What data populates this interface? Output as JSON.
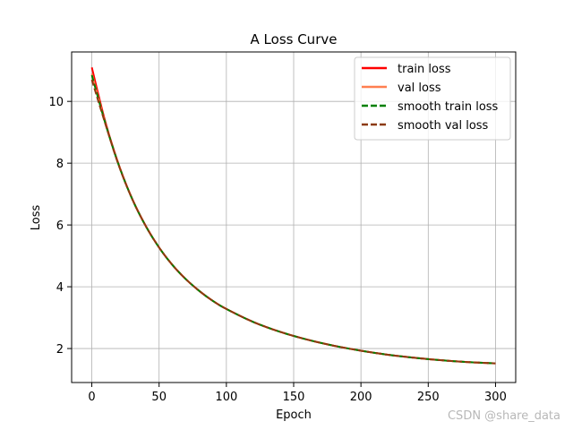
{
  "chart_data": {
    "type": "line",
    "title": "A Loss Curve",
    "xlabel": "Epoch",
    "ylabel": "Loss",
    "xlim": [
      -15,
      315
    ],
    "ylim": [
      0.9,
      11.6
    ],
    "xticks": [
      0,
      50,
      100,
      150,
      200,
      250,
      300
    ],
    "yticks": [
      2,
      4,
      6,
      8,
      10
    ],
    "grid": true,
    "legend_position": "top-right",
    "series": [
      {
        "name": "train loss",
        "color": "#ff0000",
        "style": "solid",
        "x": [
          0,
          10,
          20,
          30,
          40,
          50,
          60,
          70,
          80,
          90,
          100,
          120,
          140,
          160,
          180,
          200,
          220,
          240,
          260,
          280,
          300
        ],
        "values": [
          11.1,
          9.35,
          7.96,
          6.85,
          5.98,
          5.27,
          4.7,
          4.24,
          3.86,
          3.54,
          3.28,
          2.86,
          2.54,
          2.29,
          2.09,
          1.93,
          1.8,
          1.7,
          1.62,
          1.56,
          1.52
        ]
      },
      {
        "name": "val loss",
        "color": "#ff7f50",
        "style": "solid",
        "x": [
          0,
          10,
          20,
          30,
          40,
          50,
          60,
          70,
          80,
          90,
          100,
          120,
          140,
          160,
          180,
          200,
          220,
          240,
          260,
          280,
          300
        ],
        "values": [
          10.9,
          9.3,
          7.94,
          6.84,
          5.97,
          5.27,
          4.7,
          4.24,
          3.86,
          3.54,
          3.28,
          2.86,
          2.54,
          2.29,
          2.09,
          1.93,
          1.8,
          1.7,
          1.62,
          1.56,
          1.52
        ]
      },
      {
        "name": "smooth train loss",
        "color": "#008000",
        "style": "dashed",
        "x": [
          0,
          10,
          20,
          30,
          40,
          50,
          60,
          70,
          80,
          90,
          100,
          120,
          140,
          160,
          180,
          200,
          220,
          240,
          260,
          280,
          300
        ],
        "values": [
          10.85,
          9.3,
          7.94,
          6.84,
          5.97,
          5.27,
          4.7,
          4.24,
          3.86,
          3.54,
          3.28,
          2.86,
          2.54,
          2.29,
          2.09,
          1.93,
          1.8,
          1.7,
          1.62,
          1.56,
          1.52
        ]
      },
      {
        "name": "smooth val loss",
        "color": "#8b3a0f",
        "style": "dashed",
        "x": [
          0,
          10,
          20,
          30,
          40,
          50,
          60,
          70,
          80,
          90,
          100,
          120,
          140,
          160,
          180,
          200,
          220,
          240,
          260,
          280,
          300
        ],
        "values": [
          10.7,
          9.28,
          7.93,
          6.84,
          5.97,
          5.27,
          4.7,
          4.24,
          3.86,
          3.54,
          3.28,
          2.86,
          2.54,
          2.29,
          2.09,
          1.93,
          1.8,
          1.7,
          1.62,
          1.56,
          1.52
        ]
      }
    ]
  },
  "watermark": "CSDN @share_data"
}
